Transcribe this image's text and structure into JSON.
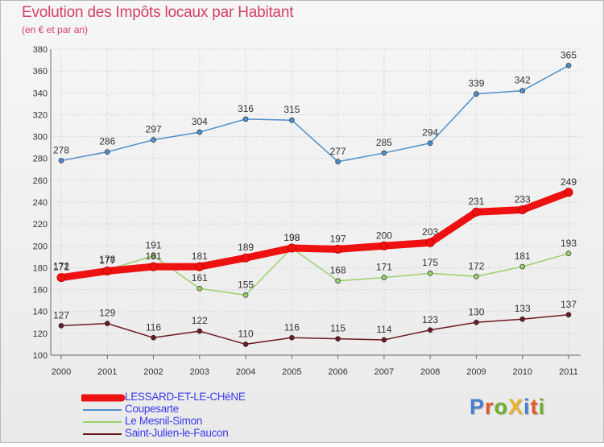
{
  "title": "Evolution des Impôts locaux par Habitant",
  "subtitle": "(en € et par an)",
  "brand": {
    "text": "ProXiti",
    "colors": [
      "#4a7fd0",
      "#e05a2a",
      "#6fae2d",
      "#e8b326",
      "#4a7fd0",
      "#e05a2a",
      "#6fae2d"
    ]
  },
  "chart_data": {
    "type": "line",
    "categories": [
      "2000",
      "2001",
      "2002",
      "2003",
      "2004",
      "2005",
      "2006",
      "2007",
      "2008",
      "2009",
      "2010",
      "2011"
    ],
    "ylim": [
      100,
      380
    ],
    "yticks": [
      "100",
      "120",
      "140",
      "160",
      "180",
      "200",
      "220",
      "240",
      "260",
      "280",
      "300",
      "320",
      "340",
      "360",
      "380"
    ],
    "grid": true,
    "legend_position": "bottom-left",
    "series": [
      {
        "name": "Coupesarte",
        "color": "#4f8fca",
        "values": [
          278,
          286,
          297,
          304,
          316,
          315,
          277,
          285,
          294,
          339,
          342,
          365
        ]
      },
      {
        "name": "Le Mesnil-Simon",
        "color": "#9ad06a",
        "values": [
          172,
          178,
          191,
          161,
          155,
          198,
          168,
          171,
          175,
          172,
          181,
          193
        ]
      },
      {
        "name": "Saint-Julien-le-Faucon",
        "color": "#6b1a22",
        "values": [
          127,
          129,
          116,
          122,
          110,
          116,
          115,
          114,
          123,
          130,
          133,
          137
        ]
      },
      {
        "name": "LESSARD-ET-LE-CHéNE",
        "color": "#ee1111",
        "values": [
          171,
          177,
          181,
          181,
          189,
          198,
          197,
          200,
          203,
          231,
          233,
          249
        ]
      }
    ]
  }
}
